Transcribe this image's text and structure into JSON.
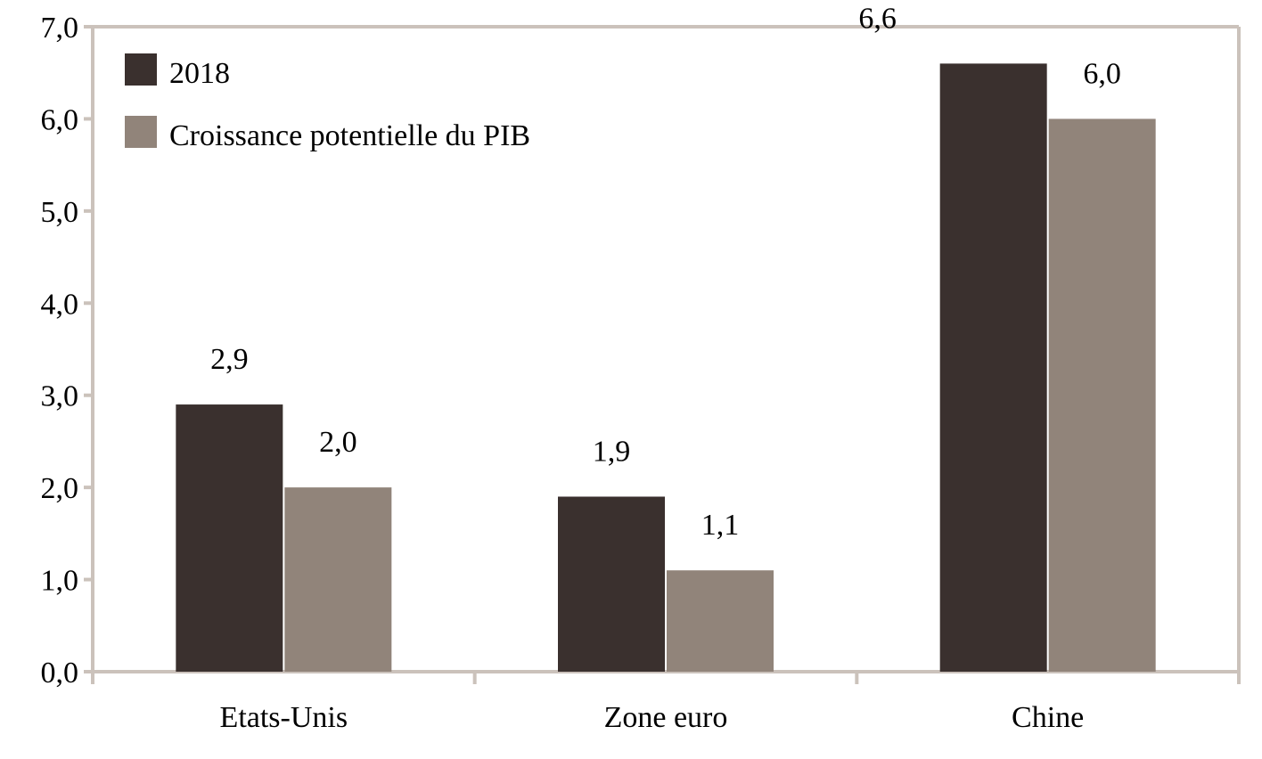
{
  "chart_data": {
    "type": "bar",
    "categories": [
      "Etats-Unis",
      "Zone euro",
      "Chine"
    ],
    "series": [
      {
        "name": "2018",
        "values": [
          2.9,
          1.9,
          6.6
        ],
        "labels": [
          "2,9",
          "1,9",
          "6,6"
        ],
        "color": "#3a302e"
      },
      {
        "name": "Croissance potentielle du PIB",
        "values": [
          2.0,
          1.1,
          6.0
        ],
        "labels": [
          "2,0",
          "1,1",
          "6,0"
        ],
        "color": "#91847a"
      }
    ],
    "ylim": [
      0,
      7
    ],
    "yticks": [
      0,
      1,
      2,
      3,
      4,
      5,
      6,
      7
    ],
    "ytick_labels": [
      "0,0",
      "1,0",
      "2,0",
      "3,0",
      "4,0",
      "5,0",
      "6,0",
      "7,0"
    ],
    "xlabel": "",
    "ylabel": "",
    "grid": false,
    "legend": "top-left",
    "frame_color": "#cbc2bb"
  }
}
